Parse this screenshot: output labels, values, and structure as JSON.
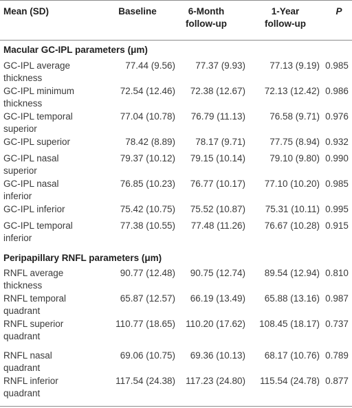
{
  "table": {
    "headers": {
      "col0": "Mean (SD)",
      "col1": "Baseline",
      "col2_line1": "6-Month",
      "col2_line2": "follow-up",
      "col3_line1": "1-Year",
      "col3_line2": "follow-up",
      "col4": "P"
    },
    "sections": [
      {
        "title": "Macular GC-IPL parameters (μm)",
        "rows": [
          {
            "l1": "GC-IPL average",
            "l2": "thickness",
            "baseline": "77.44 (9.56)",
            "m6": "77.37 (9.93)",
            "y1": "77.13 (9.19)",
            "p": "0.985"
          },
          {
            "l1": "GC-IPL minimum",
            "l2": "thickness",
            "baseline": "72.54 (12.46)",
            "m6": "72.38 (12.67)",
            "y1": "72.13 (12.42)",
            "p": "0.986"
          },
          {
            "l1": "GC-IPL temporal",
            "l2": "superior",
            "baseline": "77.04 (10.78)",
            "m6": "76.79 (11.13)",
            "y1": "76.58 (9.71)",
            "p": "0.976"
          },
          {
            "l1": "GC-IPL superior",
            "l2": "",
            "baseline": "78.42 (8.89)",
            "m6": "78.17 (9.71)",
            "y1": "77.75 (8.94)",
            "p": "0.932"
          },
          {
            "l1": "GC-IPL nasal",
            "l2": "superior",
            "baseline": "79.37 (10.12)",
            "m6": "79.15 (10.14)",
            "y1": "79.10 (9.80)",
            "p": "0.990"
          },
          {
            "l1": "GC-IPL nasal",
            "l2": "inferior",
            "baseline": "76.85 (10.23)",
            "m6": "76.77 (10.17)",
            "y1": "77.10 (10.20)",
            "p": "0.985"
          },
          {
            "l1": "GC-IPL inferior",
            "l2": "",
            "baseline": "75.42 (10.75)",
            "m6": "75.52 (10.87)",
            "y1": "75.31 (10.11)",
            "p": "0.995"
          },
          {
            "l1": "GC-IPL temporal",
            "l2": "inferior",
            "baseline": "77.38 (10.55)",
            "m6": "77.48 (11.26)",
            "y1": "76.67 (10.28)",
            "p": "0.915"
          }
        ]
      },
      {
        "title": "Peripapillary RNFL parameters (μm)",
        "rows": [
          {
            "l1": "RNFL average",
            "l2": "thickness",
            "baseline": "90.77 (12.48)",
            "m6": "90.75 (12.74)",
            "y1": "89.54 (12.94)",
            "p": "0.810"
          },
          {
            "l1": "RNFL temporal",
            "l2": "quadrant",
            "baseline": "65.87 (12.57)",
            "m6": "66.19 (13.49)",
            "y1": "65.88 (13.16)",
            "p": "0.987"
          },
          {
            "l1": "RNFL superior",
            "l2": "quadrant",
            "baseline": "110.77 (18.65)",
            "m6": "110.20 (17.62)",
            "y1": "108.45 (18.17)",
            "p": "0.737"
          },
          {
            "l1": "RNFL nasal",
            "l2": "quadrant",
            "baseline": "69.06 (10.75)",
            "m6": "69.36 (10.13)",
            "y1": "68.17 (10.76)",
            "p": "0.789"
          },
          {
            "l1": "RNFL inferior",
            "l2": "quadrant",
            "baseline": "117.54 (24.38)",
            "m6": "117.23 (24.80)",
            "y1": "115.54 (24.78)",
            "p": "0.877"
          }
        ]
      }
    ]
  }
}
